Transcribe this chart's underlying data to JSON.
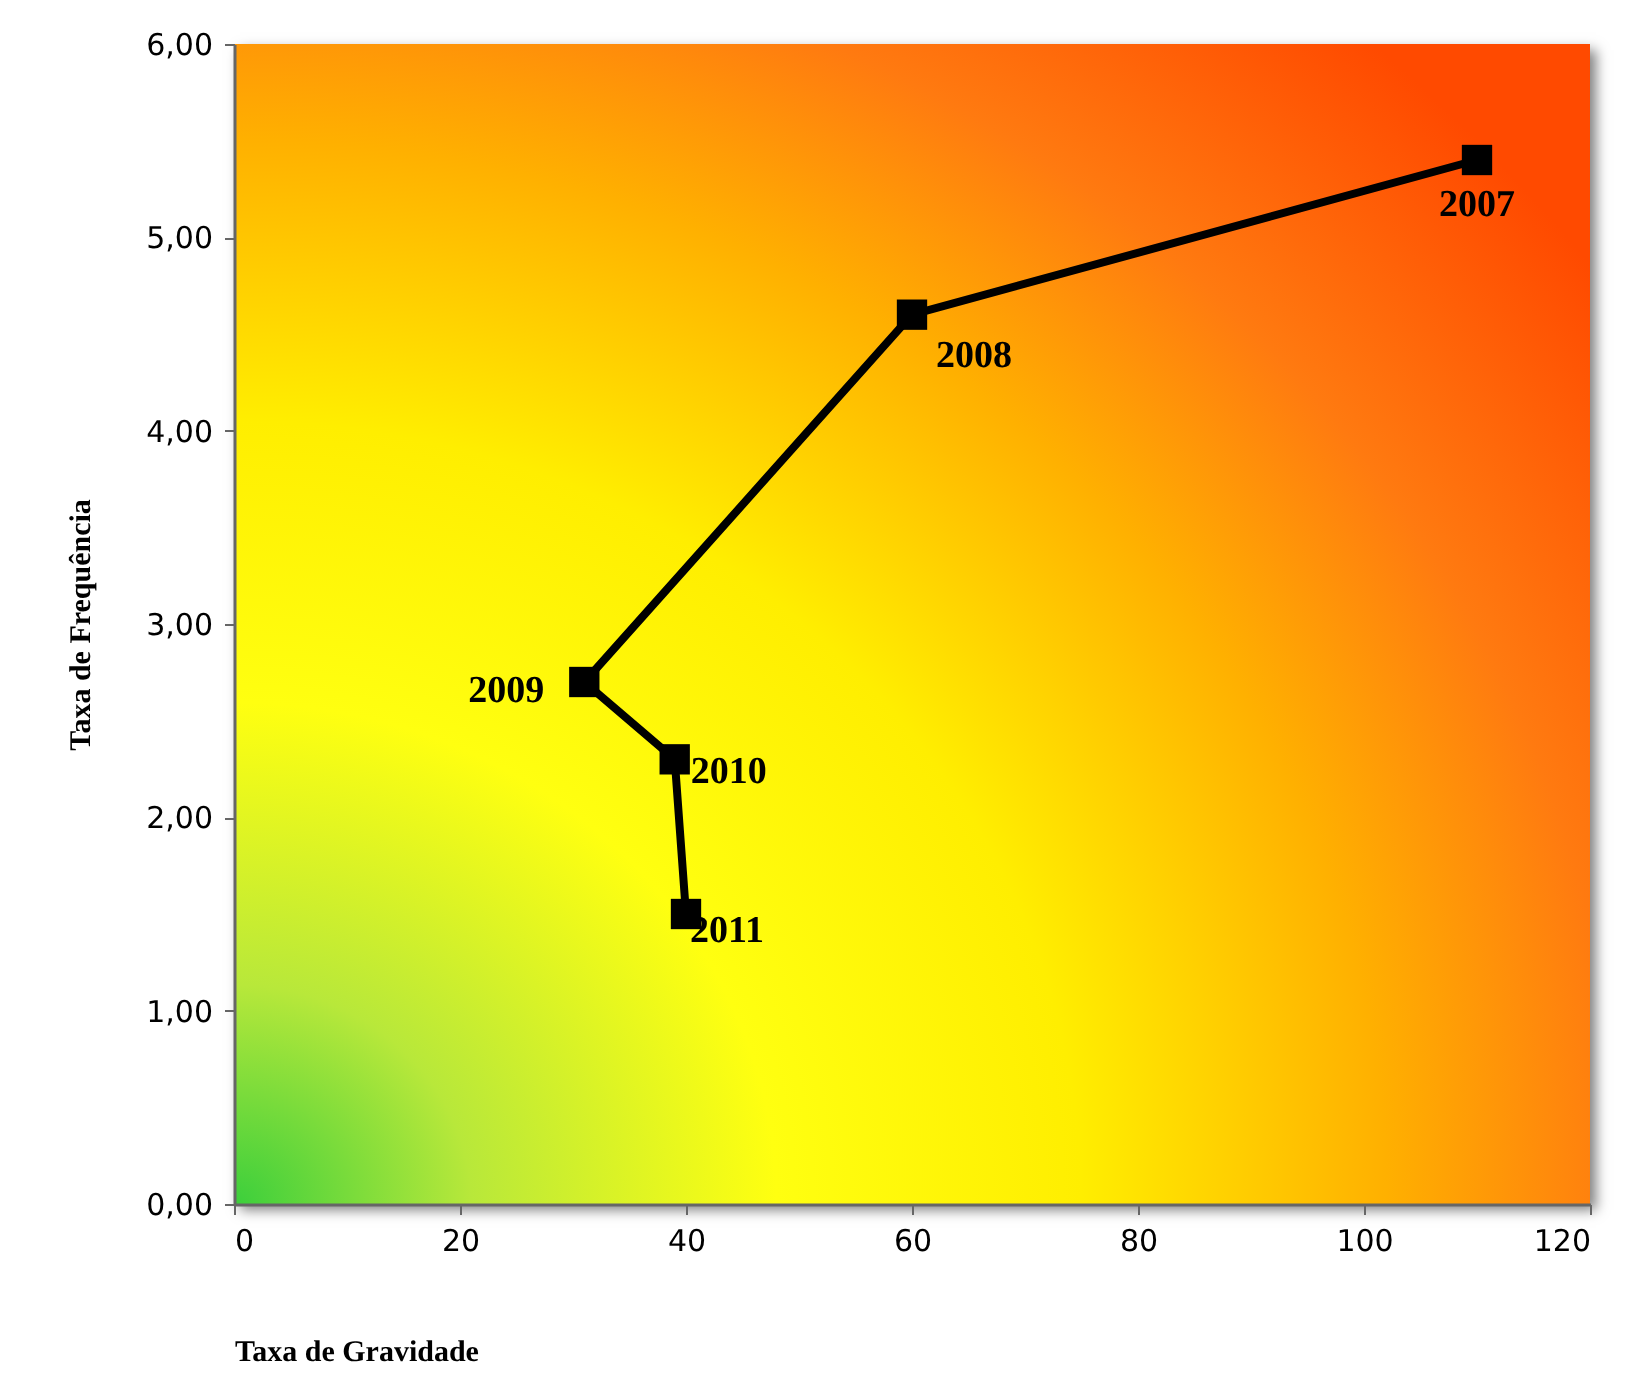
{
  "chart_data": {
    "type": "line",
    "xlabel": "Taxa de Gravidade",
    "ylabel": "Taxa de Frequência",
    "x": [
      110,
      60,
      31,
      39,
      40
    ],
    "series": [
      {
        "color": "#000000",
        "values": [
          5.4,
          4.6,
          2.7,
          2.3,
          1.5
        ]
      }
    ],
    "xlim": [
      0,
      120
    ],
    "xticks": [
      0,
      20,
      40,
      60,
      80,
      100,
      120
    ],
    "ylim": [
      0,
      6
    ],
    "yticks": [
      {
        "value": 0,
        "label": "0,00"
      },
      {
        "value": 1,
        "label": "1,00"
      },
      {
        "value": 2,
        "label": "2,00"
      },
      {
        "value": 3,
        "label": "3,00"
      },
      {
        "value": 4,
        "label": "4,00"
      },
      {
        "value": 5,
        "label": "5,00"
      },
      {
        "value": 6,
        "label": "6,00"
      }
    ],
    "annotations": [
      {
        "text": "2007",
        "x": 110,
        "y": 5.4
      },
      {
        "text": "2008",
        "x": 60,
        "y": 4.6
      },
      {
        "text": "2009",
        "x": 31,
        "y": 2.7
      },
      {
        "text": "2010",
        "x": 39,
        "y": 2.3
      },
      {
        "text": "2011",
        "x": 40,
        "y": 1.5
      }
    ],
    "grid": false,
    "marker": "square",
    "line_style": "solid"
  }
}
